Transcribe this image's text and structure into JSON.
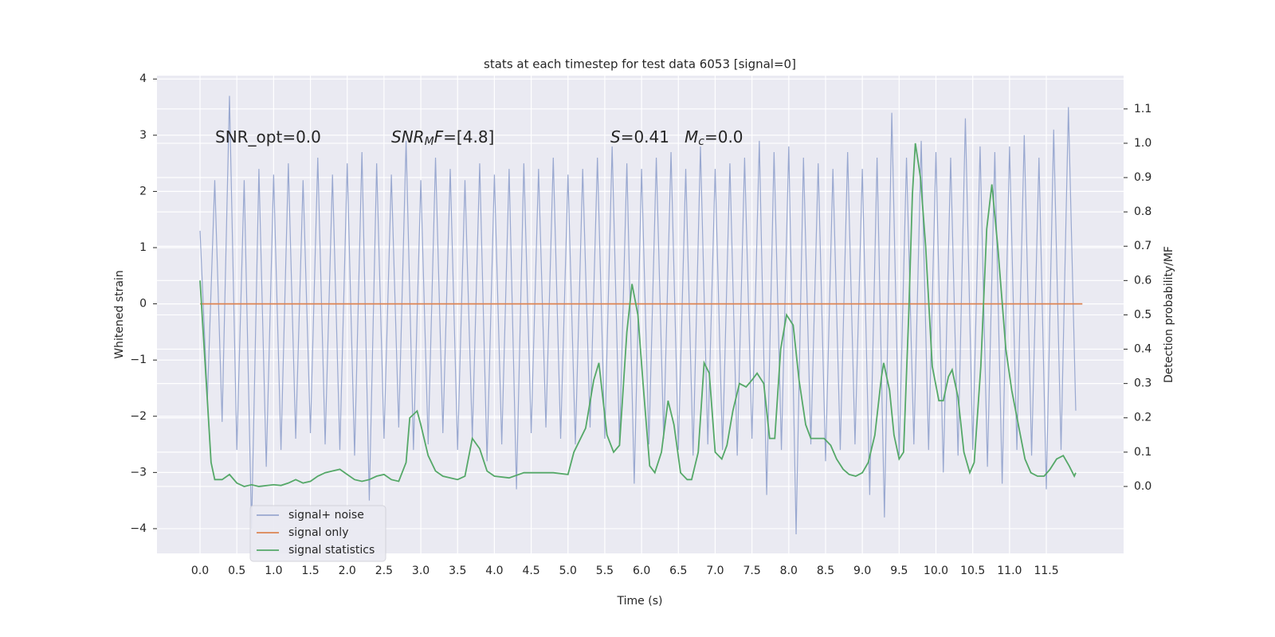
{
  "chart_data": {
    "type": "line",
    "title": "stats at each timestep for test data 6053 [signal=0]",
    "xlabel": "Time (s)",
    "ylabel": "Whitened strain",
    "y2label": "Detection probability/MF",
    "xlim": [
      -0.585,
      12.55
    ],
    "ylim": [
      -4.44,
      4.06
    ],
    "y2lim": [
      -0.195,
      1.197
    ],
    "xticks": [
      {
        "value": 0,
        "label": "0.0"
      },
      {
        "value": 0.5,
        "label": "0.5"
      },
      {
        "value": 1,
        "label": "1.0"
      },
      {
        "value": 1.5,
        "label": "1.5"
      },
      {
        "value": 2,
        "label": "2.0"
      },
      {
        "value": 2.5,
        "label": "2.5"
      },
      {
        "value": 3,
        "label": "3.0"
      },
      {
        "value": 3.5,
        "label": "3.5"
      },
      {
        "value": 4,
        "label": "4.0"
      },
      {
        "value": 4.5,
        "label": "4.5"
      },
      {
        "value": 5,
        "label": "5.0"
      },
      {
        "value": 5.5,
        "label": "5.5"
      },
      {
        "value": 6,
        "label": "6.0"
      },
      {
        "value": 6.5,
        "label": "6.5"
      },
      {
        "value": 7,
        "label": "7.0"
      },
      {
        "value": 7.5,
        "label": "7.5"
      },
      {
        "value": 8,
        "label": "8.0"
      },
      {
        "value": 8.5,
        "label": "8.5"
      },
      {
        "value": 9,
        "label": "9.0"
      },
      {
        "value": 9.5,
        "label": "9.5"
      },
      {
        "value": 10,
        "label": "10.0"
      },
      {
        "value": 10.5,
        "label": "10.5"
      },
      {
        "value": 11,
        "label": "11.0"
      },
      {
        "value": 11.5,
        "label": "11.5"
      }
    ],
    "yticks": [
      {
        "value": -4,
        "label": "−4"
      },
      {
        "value": -3,
        "label": "−3"
      },
      {
        "value": -2,
        "label": "−2"
      },
      {
        "value": -1,
        "label": "−1"
      },
      0,
      1,
      2,
      3,
      4
    ],
    "y2ticks": [
      {
        "value": 0,
        "label": "0.0"
      },
      {
        "value": 0.1,
        "label": "0.1"
      },
      {
        "value": 0.2,
        "label": "0.2"
      },
      {
        "value": 0.3,
        "label": "0.3"
      },
      {
        "value": 0.4,
        "label": "0.4"
      },
      {
        "value": 0.5,
        "label": "0.5"
      },
      {
        "value": 0.6,
        "label": "0.6"
      },
      {
        "value": 0.7,
        "label": "0.7"
      },
      {
        "value": 0.8,
        "label": "0.8"
      },
      {
        "value": 0.9,
        "label": "0.9"
      },
      {
        "value": 1,
        "label": "1.0"
      },
      {
        "value": 1.1,
        "label": "1.1"
      }
    ],
    "grid": true,
    "legend": "lower left",
    "series": [
      {
        "name": "signal+ noise",
        "color": "#99a8d0",
        "x": [
          0,
          0.1,
          0.2,
          0.3,
          0.4,
          0.5,
          0.6,
          0.7,
          0.8,
          0.9,
          1,
          1.1,
          1.2,
          1.3,
          1.4,
          1.5,
          1.6,
          1.7,
          1.8,
          1.9,
          2,
          2.1,
          2.2,
          2.3,
          2.4,
          2.5,
          2.6,
          2.7,
          2.8,
          2.9,
          3,
          3.1,
          3.2,
          3.3,
          3.4,
          3.5,
          3.6,
          3.7,
          3.8,
          3.9,
          4,
          4.1,
          4.2,
          4.3,
          4.4,
          4.5,
          4.6,
          4.7,
          4.8,
          4.9,
          5,
          5.1,
          5.2,
          5.3,
          5.4,
          5.5,
          5.6,
          5.7,
          5.8,
          5.9,
          6,
          6.1,
          6.2,
          6.3,
          6.4,
          6.5,
          6.6,
          6.7,
          6.8,
          6.9,
          7,
          7.1,
          7.2,
          7.3,
          7.4,
          7.5,
          7.6,
          7.7,
          7.8,
          7.9,
          8,
          8.1,
          8.2,
          8.3,
          8.4,
          8.5,
          8.6,
          8.7,
          8.8,
          8.9,
          9,
          9.1,
          9.2,
          9.3,
          9.4,
          9.5,
          9.6,
          9.7,
          9.8,
          9.9,
          10,
          10.1,
          10.2,
          10.3,
          10.4,
          10.5,
          10.6,
          10.7,
          10.8,
          10.9,
          11,
          11.1,
          11.2,
          11.3,
          11.4,
          11.5,
          11.6,
          11.7,
          11.8,
          11.9
        ],
        "values": [
          1.3,
          -1.7,
          2.2,
          -2.1,
          3.7,
          -2.6,
          2.2,
          -4.0,
          2.4,
          -2.9,
          2.3,
          -2.6,
          2.5,
          -2.4,
          2.2,
          -2.3,
          2.6,
          -2.5,
          2.3,
          -2.6,
          2.5,
          -2.7,
          2.7,
          -3.5,
          2.5,
          -2.4,
          2.3,
          -2.2,
          2.9,
          -2.6,
          2.2,
          -2.5,
          2.6,
          -2.3,
          2.4,
          -2.6,
          2.2,
          -2.4,
          2.5,
          -2.8,
          2.3,
          -2.5,
          2.4,
          -3.3,
          2.5,
          -2.3,
          2.4,
          -2.2,
          2.6,
          -2.4,
          2.3,
          -2.5,
          2.4,
          -2.2,
          2.6,
          -2.4,
          2.8,
          -2.5,
          2.5,
          -3.2,
          2.4,
          -2.5,
          2.6,
          -2.4,
          2.7,
          -2.6,
          2.4,
          -2.7,
          2.8,
          -2.5,
          2.4,
          -2.6,
          2.5,
          -2.7,
          2.6,
          -2.4,
          2.9,
          -3.4,
          2.7,
          -2.6,
          2.8,
          -4.1,
          2.6,
          -2.5,
          2.5,
          -2.8,
          2.4,
          -2.6,
          2.7,
          -2.5,
          2.4,
          -3.4,
          2.6,
          -3.8,
          3.4,
          -2.7,
          2.6,
          -2.5,
          2.9,
          -2.6,
          2.7,
          -3.0,
          2.6,
          -2.7,
          3.3,
          -2.6,
          2.8,
          -2.9,
          2.7,
          -3.2,
          2.8,
          -2.6,
          3.0,
          -2.7,
          2.6,
          -3.3,
          3.1,
          -2.6,
          3.5,
          -1.9
        ]
      },
      {
        "name": "signal only",
        "color": "#dd8452",
        "x": [
          0,
          11.99
        ],
        "values": [
          0,
          0
        ]
      },
      {
        "name": "signal statistics",
        "color": "#55a868",
        "axis": "y2",
        "x": [
          0,
          0.1,
          0.15,
          0.2,
          0.3,
          0.4,
          0.5,
          0.6,
          0.7,
          0.8,
          1.0,
          1.1,
          1.2,
          1.3,
          1.4,
          1.5,
          1.6,
          1.7,
          1.8,
          1.9,
          2.0,
          2.1,
          2.2,
          2.3,
          2.4,
          2.5,
          2.6,
          2.7,
          2.8,
          2.85,
          2.95,
          3.0,
          3.1,
          3.2,
          3.3,
          3.5,
          3.6,
          3.7,
          3.8,
          3.9,
          4.0,
          4.2,
          4.4,
          4.6,
          4.8,
          5.0,
          5.08,
          5.24,
          5.35,
          5.42,
          5.53,
          5.62,
          5.7,
          5.8,
          5.87,
          5.95,
          6.02,
          6.11,
          6.18,
          6.27,
          6.36,
          6.44,
          6.53,
          6.62,
          6.68,
          6.77,
          6.85,
          6.92,
          7.0,
          7.09,
          7.16,
          7.24,
          7.33,
          7.42,
          7.5,
          7.57,
          7.66,
          7.74,
          7.81,
          7.89,
          7.97,
          8.06,
          8.14,
          8.23,
          8.3,
          8.39,
          8.48,
          8.57,
          8.65,
          8.74,
          8.82,
          8.91,
          9.0,
          9.08,
          9.17,
          9.26,
          9.29,
          9.37,
          9.43,
          9.5,
          9.56,
          9.63,
          9.68,
          9.72,
          9.79,
          9.86,
          9.95,
          10.04,
          10.1,
          10.17,
          10.22,
          10.3,
          10.38,
          10.46,
          10.52,
          10.61,
          10.69,
          10.76,
          10.84,
          10.95,
          11.03,
          11.12,
          11.21,
          11.29,
          11.38,
          11.47,
          11.55,
          11.64,
          11.73,
          11.81,
          11.88,
          11.9
        ],
        "values": [
          0.6,
          0.25,
          0.07,
          0.02,
          0.02,
          0.035,
          0.01,
          0.0,
          0.005,
          0.0,
          0.005,
          0.003,
          0.01,
          0.02,
          0.01,
          0.015,
          0.03,
          0.04,
          0.045,
          0.05,
          0.035,
          0.02,
          0.015,
          0.02,
          0.03,
          0.035,
          0.02,
          0.015,
          0.07,
          0.2,
          0.22,
          0.18,
          0.09,
          0.045,
          0.03,
          0.02,
          0.03,
          0.14,
          0.11,
          0.045,
          0.03,
          0.025,
          0.04,
          0.04,
          0.04,
          0.035,
          0.1,
          0.17,
          0.31,
          0.36,
          0.15,
          0.1,
          0.12,
          0.45,
          0.59,
          0.5,
          0.3,
          0.06,
          0.04,
          0.1,
          0.25,
          0.18,
          0.04,
          0.02,
          0.02,
          0.1,
          0.36,
          0.33,
          0.1,
          0.08,
          0.12,
          0.22,
          0.3,
          0.29,
          0.31,
          0.33,
          0.3,
          0.14,
          0.14,
          0.4,
          0.5,
          0.47,
          0.31,
          0.18,
          0.14,
          0.14,
          0.14,
          0.12,
          0.08,
          0.05,
          0.035,
          0.03,
          0.04,
          0.07,
          0.15,
          0.32,
          0.36,
          0.28,
          0.15,
          0.08,
          0.1,
          0.5,
          0.85,
          1.0,
          0.9,
          0.7,
          0.35,
          0.25,
          0.25,
          0.32,
          0.34,
          0.26,
          0.1,
          0.04,
          0.07,
          0.35,
          0.75,
          0.88,
          0.7,
          0.4,
          0.28,
          0.18,
          0.08,
          0.04,
          0.03,
          0.03,
          0.05,
          0.08,
          0.09,
          0.06,
          0.03,
          0.04
        ]
      }
    ],
    "annotations": [
      {
        "segments": [
          {
            "text": "SNR_opt=0.0"
          }
        ]
      },
      {
        "segments": [
          {
            "text": "SNR",
            "italic": true
          },
          {
            "text": "M",
            "italic": true,
            "sub": true
          },
          {
            "text": "F",
            "italic": true
          },
          {
            "text": "=[4.8]"
          }
        ]
      },
      {
        "segments": [
          {
            "text": "S",
            "italic": true
          },
          {
            "text": "=0.41"
          }
        ]
      },
      {
        "segments": [
          {
            "text": "M",
            "italic": true
          },
          {
            "text": "c",
            "italic": true,
            "sub": true
          },
          {
            "text": "=0.0"
          }
        ]
      }
    ]
  }
}
